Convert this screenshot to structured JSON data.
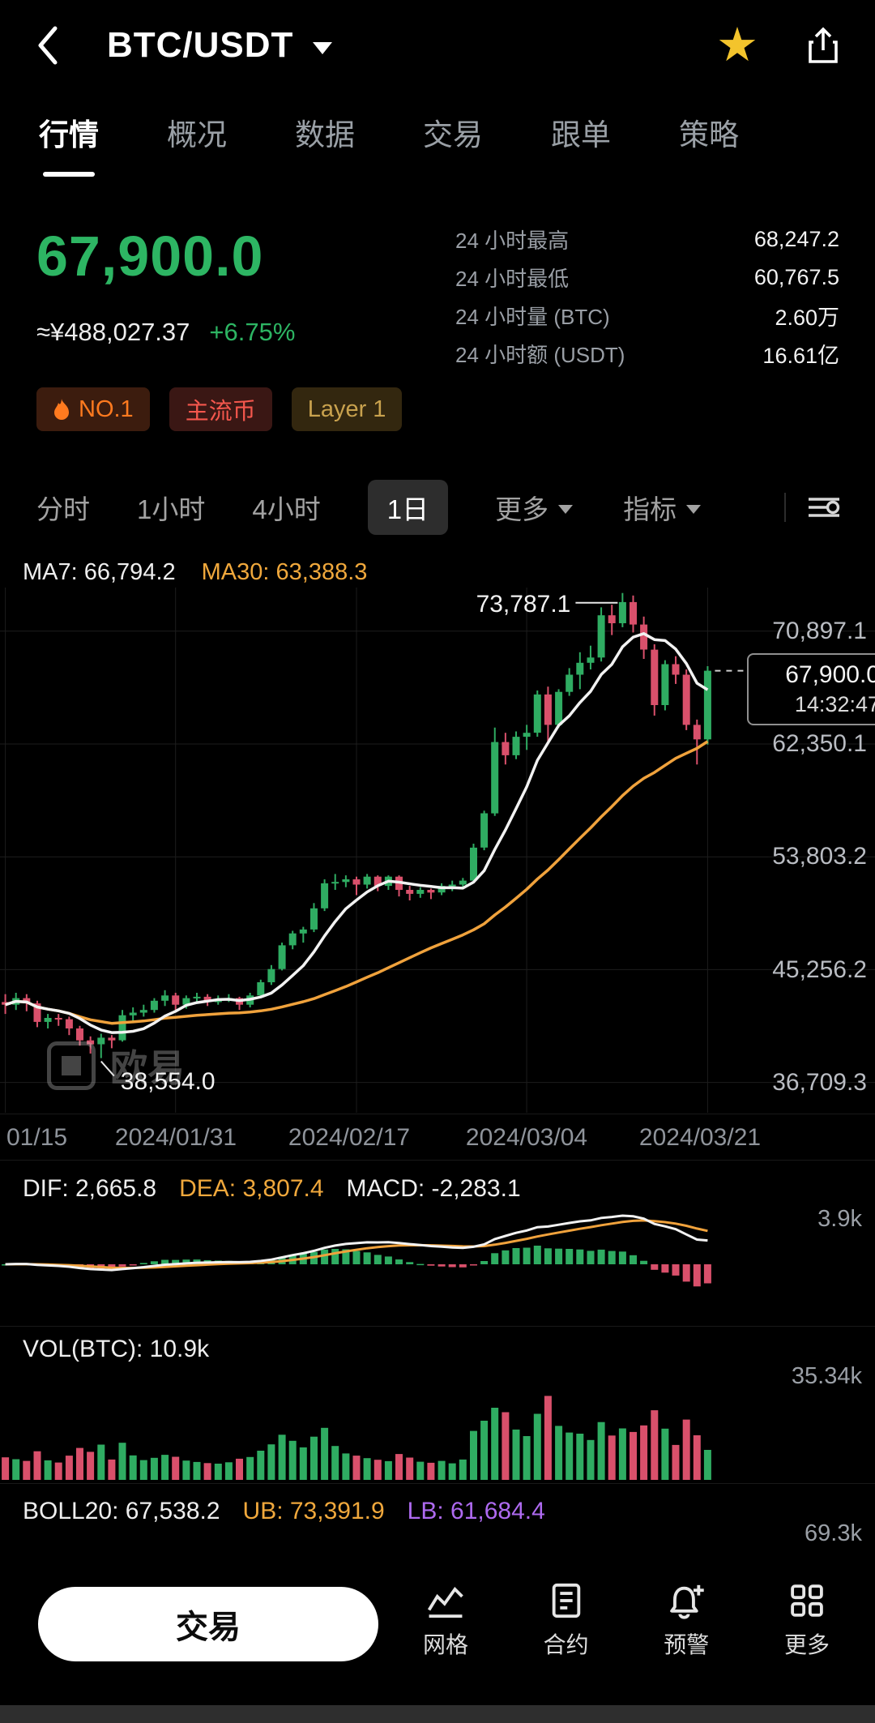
{
  "header": {
    "title": "BTC/USDT"
  },
  "tabs": [
    {
      "label": "行情"
    },
    {
      "label": "概况"
    },
    {
      "label": "数据"
    },
    {
      "label": "交易"
    },
    {
      "label": "跟单"
    },
    {
      "label": "策略"
    }
  ],
  "price": {
    "last": "67,900.0",
    "fiat": "≈¥488,027.37",
    "change": "+6.75%"
  },
  "stats": [
    {
      "label": "24 小时最高",
      "value": "68,247.2"
    },
    {
      "label": "24 小时最低",
      "value": "60,767.5"
    },
    {
      "label": "24 小时量 (BTC)",
      "value": "2.60万"
    },
    {
      "label": "24 小时额 (USDT)",
      "value": "16.61亿"
    }
  ],
  "badges": [
    {
      "label": "NO.1"
    },
    {
      "label": "主流币"
    },
    {
      "label": "Layer 1"
    }
  ],
  "timeframes": {
    "items": [
      "分时",
      "1小时",
      "4小时",
      "1日"
    ],
    "selected": "1日",
    "more_label": "更多",
    "indicator_label": "指标"
  },
  "legends": {
    "ma7": "MA7: 66,794.2",
    "ma30": "MA30: 63,388.3",
    "dif": "DIF: 2,665.8",
    "dea": "DEA: 3,807.4",
    "macd": "MACD: -2,283.1",
    "vol": "VOL(BTC): 10.9k",
    "boll": "BOLL20: 67,538.2",
    "ub": "UB: 73,391.9",
    "lb": "LB: 61,684.4"
  },
  "panel_labels": {
    "macd_max": "3.9k",
    "vol_max": "35.34k",
    "boll_max": "69.3k"
  },
  "y_axis": [
    "70,897.1",
    "62,350.1",
    "53,803.2",
    "45,256.2",
    "36,709.3"
  ],
  "x_axis": [
    "01/15",
    "2024/01/31",
    "2024/02/17",
    "2024/03/04",
    "2024/03/21"
  ],
  "annotations": {
    "high": "73,787.1",
    "low": "38,554.0"
  },
  "price_tag": {
    "price": "67,900.0",
    "time": "14:32:47"
  },
  "watermark": {
    "text": "欧易"
  },
  "bottom": {
    "trade_label": "交易",
    "actions": [
      {
        "label": "网格"
      },
      {
        "label": "合约"
      },
      {
        "label": "预警"
      },
      {
        "label": "更多"
      }
    ]
  },
  "chart_data": {
    "type": "candlestick",
    "title": "BTC/USDT 1D",
    "price_domain": [
      34416,
      74200
    ],
    "grid_prices": [
      70897.1,
      62350.1,
      53803.2,
      45256.2,
      36709.3
    ],
    "grid_indices": [
      0,
      16,
      33,
      49,
      66
    ],
    "vol_axis_max": 35.34,
    "colors": {
      "up": "#2fac62",
      "down": "#d9506b",
      "ma7": "#f2f2f2",
      "ma30": "#f0a23c",
      "grid": "#1d1d1d"
    },
    "candles_format": [
      "open",
      "high",
      "low",
      "close",
      "volume_k_btc"
    ],
    "candles": [
      [
        42800,
        43400,
        41900,
        42600,
        8.2
      ],
      [
        42600,
        43500,
        42200,
        43100,
        7.5
      ],
      [
        43100,
        43400,
        42100,
        42700,
        6.9
      ],
      [
        42700,
        42900,
        40900,
        41300,
        10.4
      ],
      [
        41300,
        41900,
        40800,
        41600,
        7.1
      ],
      [
        41600,
        41900,
        41000,
        41500,
        6.3
      ],
      [
        41500,
        41700,
        40300,
        40800,
        8.8
      ],
      [
        40800,
        41000,
        39500,
        39900,
        11.6
      ],
      [
        39900,
        40200,
        38900,
        39600,
        10.2
      ],
      [
        39600,
        40400,
        38554,
        40100,
        12.8
      ],
      [
        40100,
        40300,
        39300,
        39900,
        7.4
      ],
      [
        39900,
        42200,
        39800,
        41800,
        13.5
      ],
      [
        41800,
        42400,
        41200,
        42000,
        8.9
      ],
      [
        42000,
        42600,
        41700,
        42200,
        7.2
      ],
      [
        42200,
        43100,
        42000,
        42900,
        8.0
      ],
      [
        42900,
        43700,
        42500,
        43300,
        9.1
      ],
      [
        43300,
        43500,
        42200,
        42600,
        8.4
      ],
      [
        42600,
        43300,
        42300,
        43100,
        7.0
      ],
      [
        43100,
        43500,
        42800,
        43200,
        6.5
      ],
      [
        43200,
        43400,
        42500,
        42800,
        6.1
      ],
      [
        42800,
        43300,
        42600,
        43000,
        5.9
      ],
      [
        43000,
        43400,
        42800,
        43100,
        6.4
      ],
      [
        43100,
        43200,
        42200,
        42600,
        7.7
      ],
      [
        42600,
        43500,
        42400,
        43300,
        8.3
      ],
      [
        43300,
        44500,
        43200,
        44300,
        10.6
      ],
      [
        44300,
        45600,
        44100,
        45300,
        12.9
      ],
      [
        45300,
        47300,
        45200,
        47100,
        16.4
      ],
      [
        47100,
        48200,
        46800,
        48000,
        14.2
      ],
      [
        48000,
        48500,
        47300,
        48300,
        11.8
      ],
      [
        48300,
        50300,
        48100,
        49900,
        15.7
      ],
      [
        49900,
        52100,
        49700,
        51800,
        18.9
      ],
      [
        51800,
        52500,
        51300,
        51900,
        12.3
      ],
      [
        51900,
        52400,
        51500,
        52100,
        9.6
      ],
      [
        52100,
        52300,
        50900,
        51700,
        8.8
      ],
      [
        51700,
        52500,
        51400,
        52300,
        7.9
      ],
      [
        52300,
        52400,
        51200,
        51600,
        7.3
      ],
      [
        51600,
        52400,
        51300,
        52300,
        6.8
      ],
      [
        52300,
        52400,
        50800,
        51300,
        9.4
      ],
      [
        51300,
        51600,
        50500,
        51000,
        8.1
      ],
      [
        51000,
        51500,
        50700,
        51300,
        6.6
      ],
      [
        51300,
        51400,
        50600,
        51100,
        6.2
      ],
      [
        51100,
        51800,
        50900,
        51600,
        6.9
      ],
      [
        51600,
        52000,
        51200,
        51700,
        6.0
      ],
      [
        51700,
        52200,
        51400,
        52000,
        7.4
      ],
      [
        52000,
        54800,
        51900,
        54500,
        17.8
      ],
      [
        54500,
        57300,
        54300,
        57100,
        21.5
      ],
      [
        57100,
        63600,
        56900,
        62500,
        26.2
      ],
      [
        62500,
        63200,
        60800,
        61500,
        24.6
      ],
      [
        61500,
        63300,
        61200,
        62900,
        18.3
      ],
      [
        62900,
        63800,
        61900,
        63200,
        15.9
      ],
      [
        63200,
        66400,
        62900,
        66100,
        24.0
      ],
      [
        66100,
        66700,
        62500,
        63800,
        30.5
      ],
      [
        63800,
        66500,
        63600,
        66300,
        19.6
      ],
      [
        66300,
        68100,
        66000,
        67600,
        17.2
      ],
      [
        67600,
        69300,
        66500,
        68500,
        16.8
      ],
      [
        68500,
        69800,
        68000,
        68900,
        14.5
      ],
      [
        68900,
        72700,
        68600,
        72100,
        21.0
      ],
      [
        72100,
        72900,
        70600,
        71500,
        16.1
      ],
      [
        71500,
        73787,
        71200,
        73100,
        18.7
      ],
      [
        73100,
        73600,
        70800,
        71400,
        17.4
      ],
      [
        71400,
        72000,
        68800,
        69500,
        19.8
      ],
      [
        69500,
        69900,
        64500,
        65300,
        25.3
      ],
      [
        65300,
        68700,
        64900,
        68400,
        18.6
      ],
      [
        68400,
        69000,
        66900,
        67600,
        12.7
      ],
      [
        67600,
        68000,
        63400,
        63800,
        21.9
      ],
      [
        63800,
        64200,
        60800,
        62700,
        16.2
      ],
      [
        62700,
        68247,
        62300,
        67900,
        10.9
      ]
    ]
  }
}
